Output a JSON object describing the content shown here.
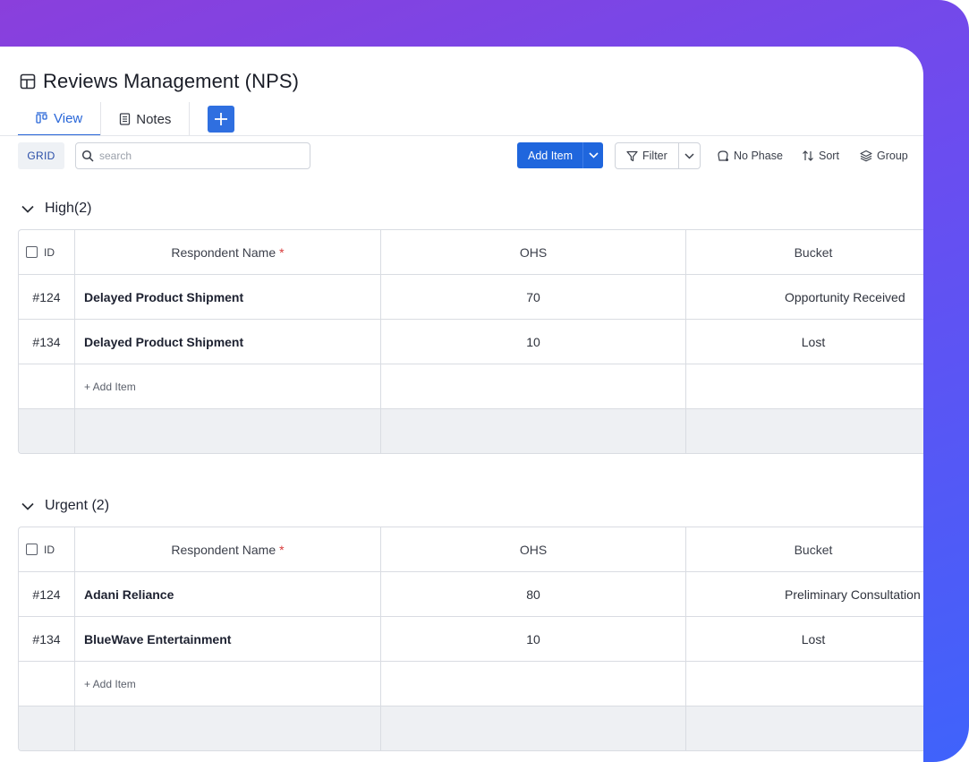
{
  "page": {
    "title": "Reviews Management (NPS)"
  },
  "tabs": [
    {
      "label": "View",
      "active": true,
      "icon": "view-columns-icon"
    },
    {
      "label": "Notes",
      "active": false,
      "icon": "notes-icon"
    }
  ],
  "toolbar": {
    "grid_label": "GRID",
    "search_placeholder": "search",
    "add_item_label": "Add Item",
    "filter_label": "Filter",
    "no_phase_label": "No Phase",
    "sort_label": "Sort",
    "group_label": "Group"
  },
  "columns": {
    "id": "ID",
    "name": "Respondent Name",
    "required_mark": "*",
    "ohs": "OHS",
    "bucket": "Bucket"
  },
  "add_row_label": "+ Add Item",
  "groups": [
    {
      "title": "High(2)",
      "rows": [
        {
          "id": "#124",
          "name": "Delayed Product Shipment",
          "ohs": "70",
          "bucket": "Opportunity Received"
        },
        {
          "id": "#134",
          "name": "Delayed Product Shipment",
          "ohs": "10",
          "bucket": "Lost"
        }
      ]
    },
    {
      "title": "Urgent (2)",
      "rows": [
        {
          "id": "#124",
          "name": "Adani Reliance",
          "ohs": "80",
          "bucket": "Preliminary Consultation"
        },
        {
          "id": "#134",
          "name": "BlueWave Entertainment",
          "ohs": "10",
          "bucket": "Lost"
        }
      ]
    }
  ],
  "colors": {
    "accent": "#1f66dd",
    "frame_start": "#8a3fdc",
    "frame_end": "#3f63fb",
    "required": "#d83a3a"
  }
}
